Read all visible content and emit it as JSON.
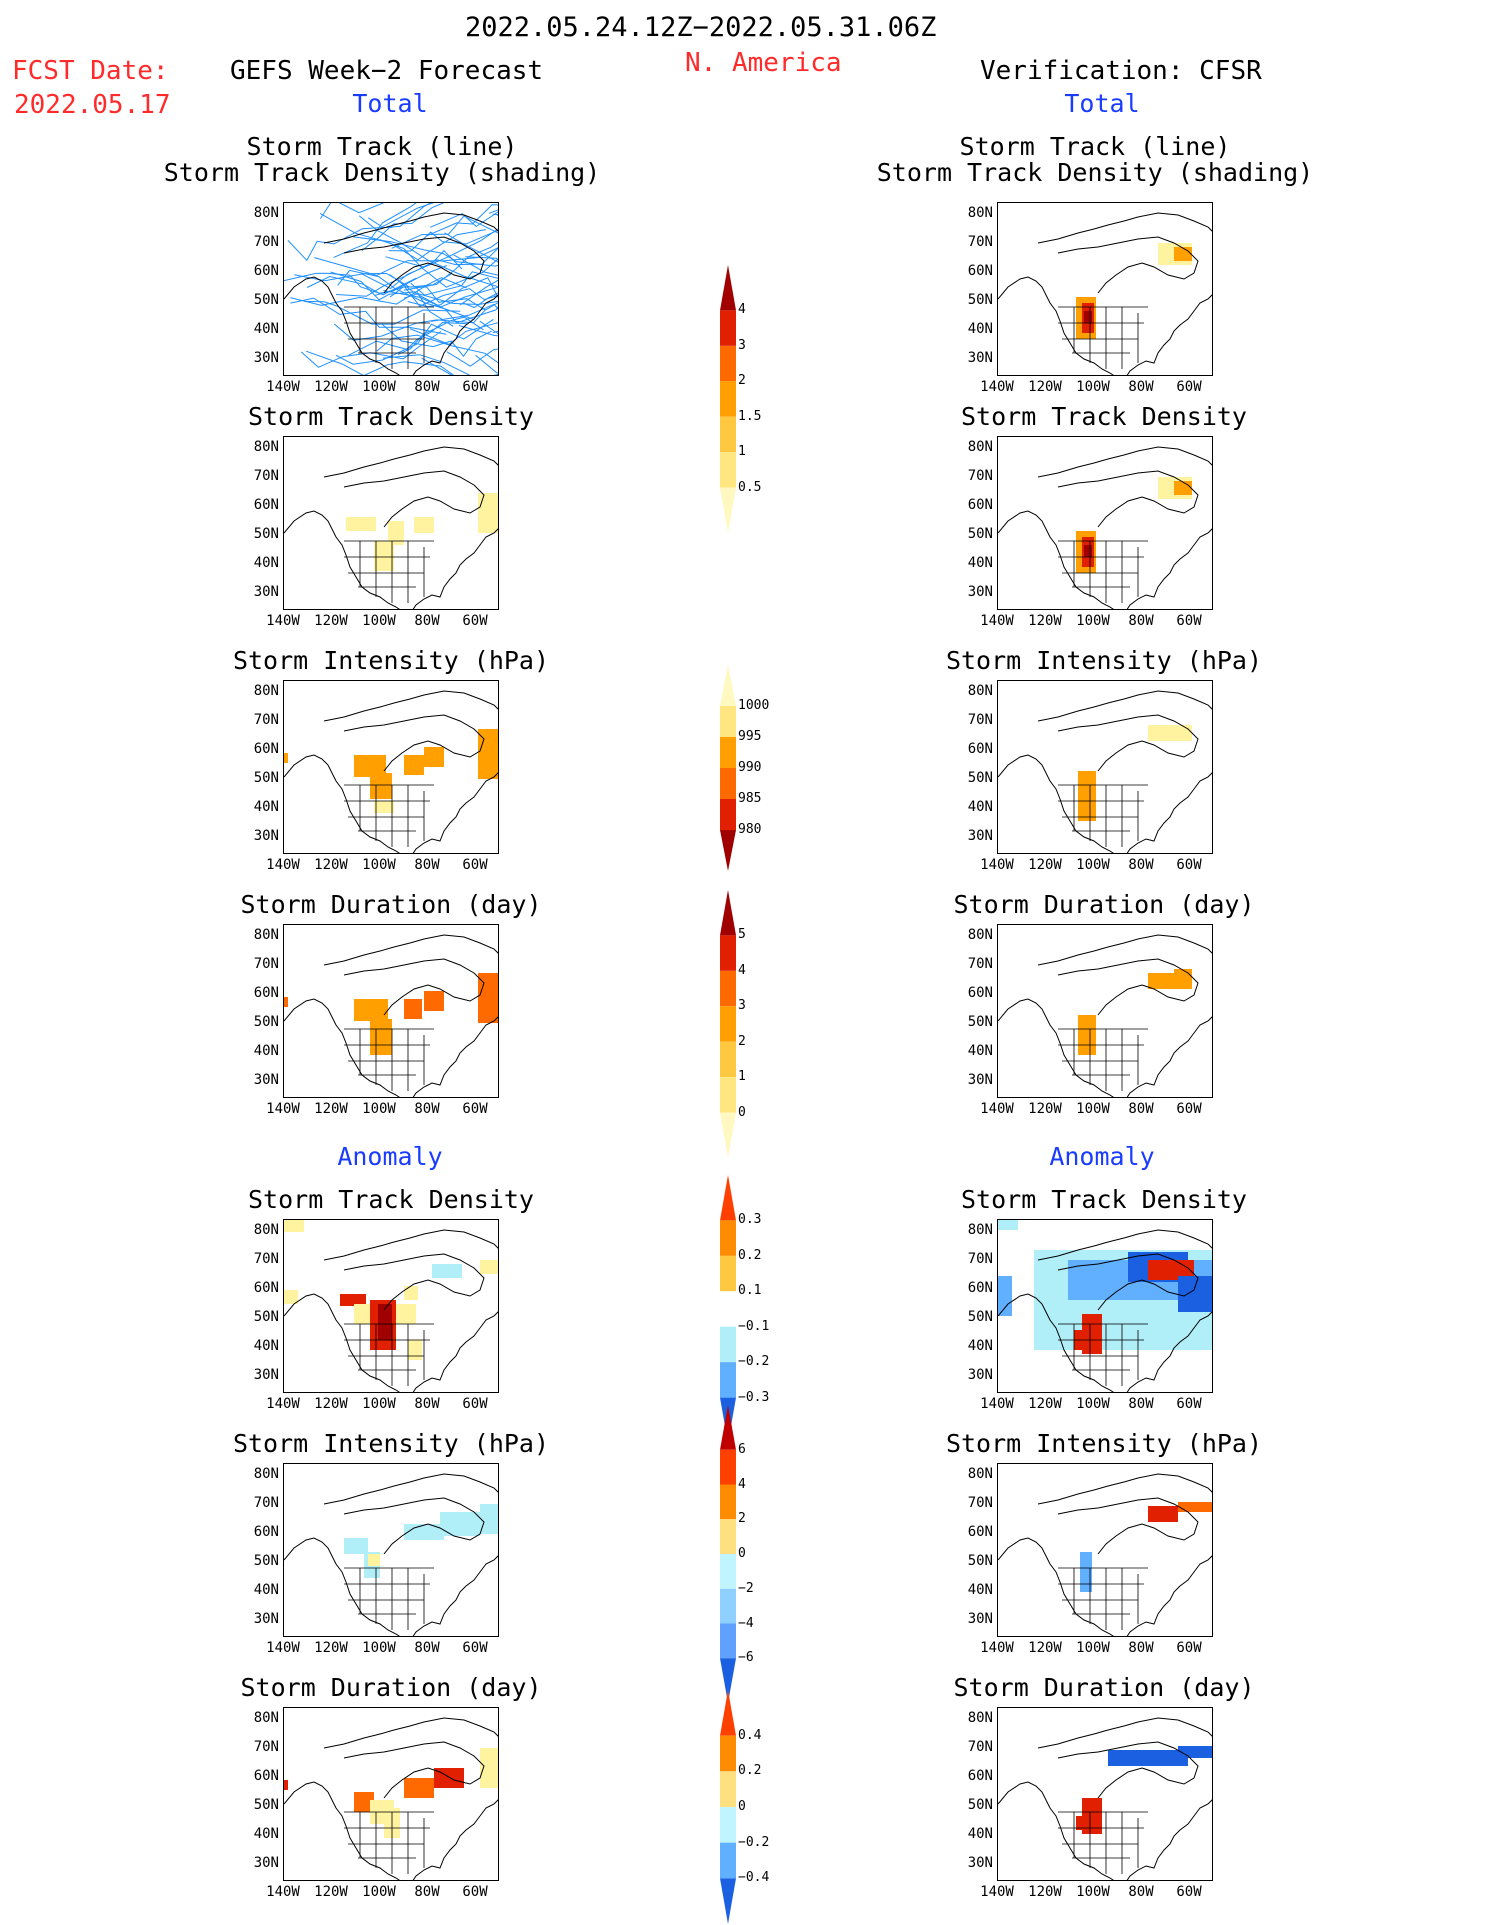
{
  "header": {
    "period": "2022.05.24.12Z−2022.05.31.06Z",
    "fcst_date_label": "FCST Date:",
    "fcst_date_value": "2022.05.17",
    "left_title": "GEFS Week−2 Forecast",
    "region": "N. America",
    "right_title": "Verification: CFSR"
  },
  "sections": {
    "total": "Total",
    "anomaly": "Anomaly"
  },
  "panel_titles": {
    "track_line": "Storm Track (line)",
    "track_density_shading": "Storm Track Density (shading)",
    "track_density": "Storm Track Density",
    "intensity": "Storm Intensity (hPa)",
    "duration": "Storm Duration (day)"
  },
  "axes": {
    "lat_labels": [
      "80N",
      "70N",
      "60N",
      "50N",
      "40N",
      "30N"
    ],
    "lon_labels": [
      "140W",
      "120W",
      "100W",
      "80W",
      "60W"
    ]
  },
  "colorbars": {
    "density_total": {
      "ticks": [
        "4",
        "3",
        "2",
        "1.5",
        "1",
        "0.5"
      ],
      "colors": [
        "#a00000",
        "#e02000",
        "#ff6a00",
        "#ffa000",
        "#ffc840",
        "#ffe680",
        "#fff8c0"
      ]
    },
    "intensity_total": {
      "ticks": [
        "1000",
        "995",
        "990",
        "985",
        "980"
      ],
      "colors": [
        "#fff8c0",
        "#ffe680",
        "#ffa000",
        "#ff6a00",
        "#e02000",
        "#a00000"
      ]
    },
    "duration_total": {
      "ticks": [
        "5",
        "4",
        "3",
        "2",
        "1",
        "0"
      ],
      "colors": [
        "#a00000",
        "#e02000",
        "#ff6a00",
        "#ffa000",
        "#ffc840",
        "#ffe680",
        "#fff8c0"
      ]
    },
    "density_anom": {
      "ticks": [
        "0.3",
        "0.2",
        "0.1",
        "−0.1",
        "−0.2",
        "−0.3"
      ],
      "colors": [
        "#ff4000",
        "#ff8c00",
        "#ffc840",
        "#ffffff",
        "#b0eef8",
        "#60b0ff",
        "#1a60e0"
      ]
    },
    "intensity_anom": {
      "ticks": [
        "6",
        "4",
        "2",
        "0",
        "−2",
        "−4",
        "−6"
      ],
      "colors": [
        "#c00000",
        "#ff4000",
        "#ff8c00",
        "#ffe080",
        "#c0f4ff",
        "#90d0ff",
        "#60a0ff",
        "#1a60e0"
      ]
    },
    "duration_anom": {
      "ticks": [
        "0.4",
        "0.2",
        "0",
        "−0.2",
        "−0.4"
      ],
      "colors": [
        "#ff4000",
        "#ff8c00",
        "#ffe080",
        "#c0f4ff",
        "#60b0ff",
        "#1a60e0"
      ]
    }
  },
  "colors": {
    "track_line": "#1e90ff",
    "red_text": "#ff2a2a",
    "blue_text": "#1a3cff"
  }
}
